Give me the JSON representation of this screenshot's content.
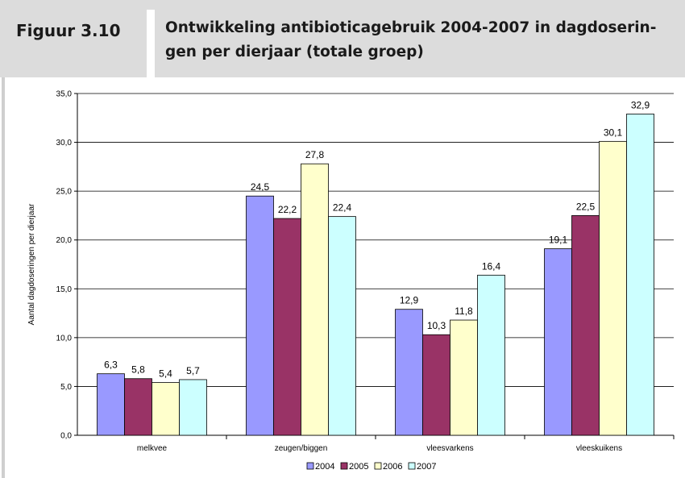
{
  "header": {
    "figure_label": "Figuur 3.10",
    "title": "Ontwikkeling antibioticagebruik 2004-2007 in dagdoserin-gen per dierjaar (totale groep)",
    "title_lines": [
      "Ontwikkeling antibioticagebruik 2004-2007 in dagdoserin-",
      "gen per dierjaar (totale groep)"
    ]
  },
  "chart_data": {
    "type": "bar",
    "title": "",
    "xlabel": "",
    "ylabel": "Aantal dagdoseringen per dierjaar",
    "ylim": [
      0,
      35
    ],
    "yticks": [
      "0,0",
      "5,0",
      "10,0",
      "15,0",
      "20,0",
      "25,0",
      "30,0",
      "35,0"
    ],
    "ytick_values": [
      0,
      5,
      10,
      15,
      20,
      25,
      30,
      35
    ],
    "grid": true,
    "legend_position": "bottom",
    "categories": [
      "melkvee",
      "zeugen/biggen",
      "vleesvarkens",
      "vleeskuikens"
    ],
    "series": [
      {
        "name": "2004",
        "color": "#9999ff",
        "values": [
          6.3,
          24.5,
          12.9,
          19.1
        ],
        "labels": [
          "6,3",
          "24,5",
          "12,9",
          "19,1"
        ]
      },
      {
        "name": "2005",
        "color": "#993366",
        "values": [
          5.8,
          22.2,
          10.3,
          22.5
        ],
        "labels": [
          "5,8",
          "22,2",
          "10,3",
          "22,5"
        ]
      },
      {
        "name": "2006",
        "color": "#ffffcc",
        "values": [
          5.4,
          27.8,
          11.8,
          30.1
        ],
        "labels": [
          "5,4",
          "27,8",
          "11,8",
          "30,1"
        ]
      },
      {
        "name": "2007",
        "color": "#ccffff",
        "values": [
          5.7,
          22.4,
          16.4,
          32.9
        ],
        "labels": [
          "5,7",
          "22,4",
          "16,4",
          "32,9"
        ]
      }
    ]
  }
}
